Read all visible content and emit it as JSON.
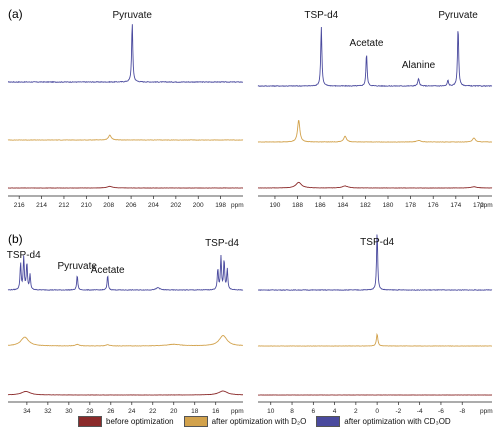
{
  "figure": {
    "panel_a_label": "(a)",
    "panel_b_label": "(b)",
    "ppm_unit": "ppm"
  },
  "colors": {
    "before": "#8b2a2a",
    "d2o": "#d2a24c",
    "cd3od": "#4a4a9e"
  },
  "legend": [
    {
      "label": "before optimization",
      "color": "#8b2a2a"
    },
    {
      "label": "after optimization with D₂O",
      "color": "#d2a24c"
    },
    {
      "label": "after optimization with CD₃OD",
      "color": "#4a4a9e"
    }
  ],
  "chart_data": [
    {
      "type": "line",
      "panel": "(a)",
      "xlabel": "ppm",
      "xlim": [
        217,
        196
      ],
      "ticks": [
        216,
        214,
        212,
        210,
        208,
        206,
        204,
        202,
        200,
        198
      ],
      "annotations": [
        {
          "text": "Pyruvate",
          "x": 205.9
        }
      ],
      "series": [
        {
          "key": "cd3od",
          "peaks": [
            {
              "x": 205.9,
              "h": 1.0,
              "w": 0.06
            }
          ],
          "noise": 0.012
        },
        {
          "key": "d2o",
          "peaks": [
            {
              "x": 207.9,
              "h": 0.12,
              "w": 0.15
            }
          ],
          "noise": 0.01
        },
        {
          "key": "before",
          "peaks": [
            {
              "x": 207.9,
              "h": 0.04,
              "w": 0.3
            }
          ],
          "noise": 0.006
        }
      ]
    },
    {
      "type": "line",
      "panel": "(a)",
      "xlabel": "ppm",
      "xlim": [
        191.5,
        170.8
      ],
      "ticks": [
        190,
        188,
        186,
        184,
        182,
        180,
        178,
        176,
        174,
        172
      ],
      "annotations": [
        {
          "text": "TSP-d4",
          "x": 185.9
        },
        {
          "text": "Acetate",
          "x": 181.9
        },
        {
          "text": "Alanine",
          "x": 177.3
        },
        {
          "text": "Pyruvate",
          "x": 173.8
        }
      ],
      "series": [
        {
          "key": "cd3od",
          "peaks": [
            {
              "x": 185.9,
              "h": 1.0,
              "w": 0.06
            },
            {
              "x": 181.9,
              "h": 0.55,
              "w": 0.06
            },
            {
              "x": 177.3,
              "h": 0.12,
              "w": 0.08
            },
            {
              "x": 174.7,
              "h": 0.1,
              "w": 0.06
            },
            {
              "x": 173.8,
              "h": 1.0,
              "w": 0.06
            }
          ],
          "noise": 0.012
        },
        {
          "key": "d2o",
          "peaks": [
            {
              "x": 187.9,
              "h": 0.55,
              "w": 0.12
            },
            {
              "x": 183.8,
              "h": 0.14,
              "w": 0.15
            },
            {
              "x": 177.3,
              "h": 0.04,
              "w": 0.2
            },
            {
              "x": 172.4,
              "h": 0.1,
              "w": 0.15
            }
          ],
          "noise": 0.01
        },
        {
          "key": "before",
          "peaks": [
            {
              "x": 187.9,
              "h": 0.14,
              "w": 0.3
            },
            {
              "x": 183.8,
              "h": 0.05,
              "w": 0.3
            },
            {
              "x": 172.4,
              "h": 0.03,
              "w": 0.3
            }
          ],
          "noise": 0.006
        }
      ]
    },
    {
      "type": "line",
      "panel": "(b)",
      "xlabel": "ppm",
      "xlim": [
        35.8,
        13.4
      ],
      "ticks": [
        34,
        32,
        30,
        28,
        26,
        24,
        22,
        20,
        18,
        16
      ],
      "annotations": [
        {
          "text": "TSP-d4",
          "x": 34.3
        },
        {
          "text": "Pyruvate",
          "x": 29.2
        },
        {
          "text": "Acetate",
          "x": 26.3
        },
        {
          "text": "TSP-d4",
          "x": 15.4
        }
      ],
      "series": [
        {
          "key": "cd3od",
          "peaks": [
            {
              "x": 34.6,
              "h": 0.45,
              "w": 0.06
            },
            {
              "x": 34.3,
              "h": 0.55,
              "w": 0.06
            },
            {
              "x": 34.0,
              "h": 0.45,
              "w": 0.06
            },
            {
              "x": 33.7,
              "h": 0.25,
              "w": 0.06
            },
            {
              "x": 29.2,
              "h": 0.25,
              "w": 0.06
            },
            {
              "x": 26.3,
              "h": 0.25,
              "w": 0.06
            },
            {
              "x": 21.5,
              "h": 0.04,
              "w": 0.2
            },
            {
              "x": 15.8,
              "h": 0.35,
              "w": 0.06
            },
            {
              "x": 15.5,
              "h": 0.55,
              "w": 0.06
            },
            {
              "x": 15.2,
              "h": 0.5,
              "w": 0.06
            },
            {
              "x": 14.9,
              "h": 0.35,
              "w": 0.06
            }
          ],
          "noise": 0.01
        },
        {
          "key": "d2o",
          "peaks": [
            {
              "x": 34.2,
              "h": 0.22,
              "w": 0.45
            },
            {
              "x": 29.2,
              "h": 0.04,
              "w": 0.2
            },
            {
              "x": 26.3,
              "h": 0.03,
              "w": 0.2
            },
            {
              "x": 20.0,
              "h": 0.04,
              "w": 0.8
            },
            {
              "x": 15.3,
              "h": 0.26,
              "w": 0.45
            }
          ],
          "noise": 0.008
        },
        {
          "key": "before",
          "peaks": [
            {
              "x": 34.1,
              "h": 0.09,
              "w": 0.5
            },
            {
              "x": 15.3,
              "h": 0.1,
              "w": 0.5
            }
          ],
          "noise": 0.005
        }
      ]
    },
    {
      "type": "line",
      "panel": "(b)",
      "xlabel": "ppm",
      "xlim": [
        11.2,
        -10.8
      ],
      "ticks": [
        10,
        8,
        6,
        4,
        2,
        0,
        -2,
        -4,
        -6,
        -8
      ],
      "annotations": [
        {
          "text": "TSP-d4",
          "x": 0
        }
      ],
      "series": [
        {
          "key": "cd3od",
          "peaks": [
            {
              "x": 0,
              "h": 1.0,
              "w": 0.06
            }
          ],
          "noise": 0.01
        },
        {
          "key": "d2o",
          "peaks": [
            {
              "x": 0,
              "h": 0.3,
              "w": 0.08
            }
          ],
          "noise": 0.008
        },
        {
          "key": "before",
          "peaks": [],
          "noise": 0.004
        }
      ]
    }
  ]
}
